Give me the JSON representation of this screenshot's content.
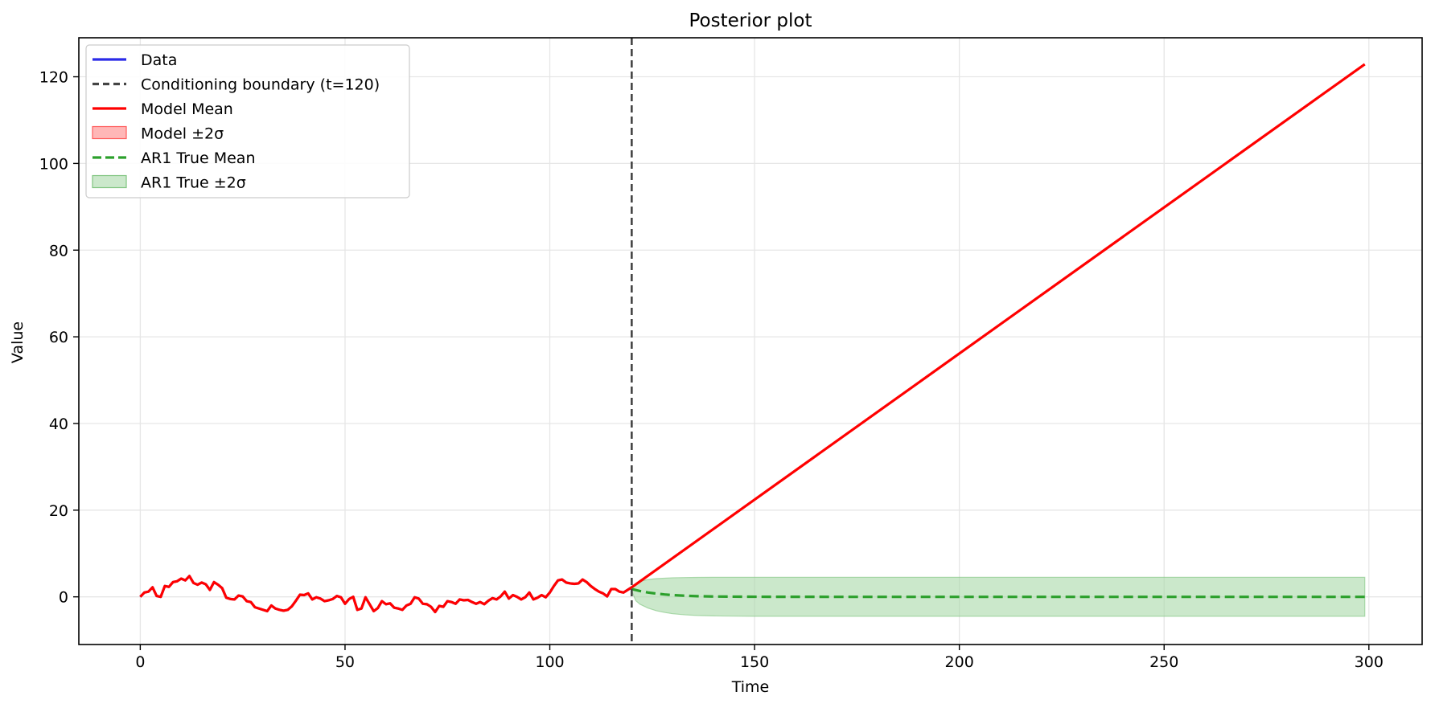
{
  "chart_data": {
    "type": "line",
    "title": "Posterior plot",
    "xlabel": "Time",
    "ylabel": "Value",
    "xlim": [
      -15,
      313
    ],
    "ylim": [
      -11,
      129
    ],
    "xticks": [
      0,
      50,
      100,
      150,
      200,
      250,
      300
    ],
    "yticks": [
      0,
      20,
      40,
      60,
      80,
      100,
      120
    ],
    "grid": true,
    "legend_position": "top-left",
    "colors": {
      "data": "#2b2be8",
      "boundary": "#444444",
      "model_mean": "#ff0000",
      "model_band": "#ff9999",
      "ar1_mean": "#2ca02c",
      "ar1_band": "#a8d8a8"
    },
    "legend": [
      {
        "label": "Data",
        "style": "line",
        "color": "#2b2be8"
      },
      {
        "label": "Conditioning boundary (t=120)",
        "style": "dashed",
        "color": "#444444"
      },
      {
        "label": "Model Mean",
        "style": "line",
        "color": "#ff0000"
      },
      {
        "label": "Model ±2σ",
        "style": "patch",
        "color": "#ff9999"
      },
      {
        "label": "AR1 True Mean",
        "style": "dashed",
        "color": "#2ca02c"
      },
      {
        "label": "AR1 True ±2σ",
        "style": "patch",
        "color": "#a8d8a8"
      }
    ],
    "boundary_x": 120,
    "series": [
      {
        "name": "Data",
        "x": [
          0,
          1,
          2,
          3,
          4,
          5,
          6,
          7,
          8,
          9,
          10,
          11,
          12,
          13,
          14,
          15,
          16,
          17,
          18,
          19,
          20,
          21,
          22,
          23,
          24,
          25,
          26,
          27,
          28,
          29,
          30,
          31,
          32,
          33,
          34,
          35,
          36,
          37,
          38,
          39,
          40,
          41,
          42,
          43,
          44,
          45,
          46,
          47,
          48,
          49,
          50,
          51,
          52,
          53,
          54,
          55,
          56,
          57,
          58,
          59,
          60,
          61,
          62,
          63,
          64,
          65,
          66,
          67,
          68,
          69,
          70,
          71,
          72,
          73,
          74,
          75,
          76,
          77,
          78,
          79,
          80,
          81,
          82,
          83,
          84,
          85,
          86,
          87,
          88,
          89,
          90,
          91,
          92,
          93,
          94,
          95,
          96,
          97,
          98,
          99,
          100,
          101,
          102,
          103,
          104,
          105,
          106,
          107,
          108,
          109,
          110,
          111,
          112,
          113,
          114,
          115,
          116,
          117,
          118,
          119,
          120
        ],
        "y": [
          0,
          1,
          1.2,
          2.2,
          0.2,
          0,
          2.5,
          2.3,
          3.4,
          3.6,
          4.2,
          3.8,
          4.8,
          3.2,
          2.8,
          3.3,
          2.9,
          1.6,
          3.4,
          2.8,
          2,
          -0.2,
          -0.5,
          -0.6,
          0.3,
          0.1,
          -1,
          -1.2,
          -2.4,
          -2.7,
          -3,
          -3.3,
          -2,
          -2.7,
          -3,
          -3.2,
          -3,
          -2.2,
          -0.9,
          0.5,
          0.4,
          0.8,
          -0.6,
          -0.1,
          -0.4,
          -1,
          -0.8,
          -0.5,
          0.2,
          -0.1,
          -1.6,
          -0.5,
          0,
          -3,
          -2.7,
          -0.1,
          -1.7,
          -3.3,
          -2.6,
          -1,
          -1.7,
          -1.5,
          -2.5,
          -2.7,
          -3,
          -2,
          -1.6,
          -0.1,
          -0.4,
          -1.6,
          -1.7,
          -2.3,
          -3.5,
          -2.1,
          -2.3,
          -1,
          -1.2,
          -1.6,
          -0.6,
          -0.8,
          -0.7,
          -1.2,
          -1.6,
          -1.2,
          -1.7,
          -0.9,
          -0.3,
          -0.6,
          0.1,
          1.2,
          -0.4,
          0.4,
          0,
          -0.6,
          -0.1,
          1,
          -0.6,
          -0.2,
          0.4,
          -0.1,
          1,
          2.5,
          3.8,
          4,
          3.3,
          3.1,
          3,
          3.1,
          4,
          3.4,
          2.5,
          1.8,
          1.2,
          0.8,
          0.1,
          1.8,
          1.8,
          1.2,
          1,
          1.6,
          2.2
        ]
      },
      {
        "name": "Model Mean",
        "x": [
          0,
          1,
          2,
          3,
          4,
          5,
          6,
          7,
          8,
          9,
          10,
          11,
          12,
          13,
          14,
          15,
          16,
          17,
          18,
          19,
          20,
          21,
          22,
          23,
          24,
          25,
          26,
          27,
          28,
          29,
          30,
          31,
          32,
          33,
          34,
          35,
          36,
          37,
          38,
          39,
          40,
          41,
          42,
          43,
          44,
          45,
          46,
          47,
          48,
          49,
          50,
          51,
          52,
          53,
          54,
          55,
          56,
          57,
          58,
          59,
          60,
          61,
          62,
          63,
          64,
          65,
          66,
          67,
          68,
          69,
          70,
          71,
          72,
          73,
          74,
          75,
          76,
          77,
          78,
          79,
          80,
          81,
          82,
          83,
          84,
          85,
          86,
          87,
          88,
          89,
          90,
          91,
          92,
          93,
          94,
          95,
          96,
          97,
          98,
          99,
          100,
          101,
          102,
          103,
          104,
          105,
          106,
          107,
          108,
          109,
          110,
          111,
          112,
          113,
          114,
          115,
          116,
          117,
          118,
          119,
          120,
          299
        ],
        "y": [
          0,
          1,
          1.2,
          2.2,
          0.2,
          0,
          2.5,
          2.3,
          3.4,
          3.6,
          4.2,
          3.8,
          4.8,
          3.2,
          2.8,
          3.3,
          2.9,
          1.6,
          3.4,
          2.8,
          2,
          -0.2,
          -0.5,
          -0.6,
          0.3,
          0.1,
          -1,
          -1.2,
          -2.4,
          -2.7,
          -3,
          -3.3,
          -2,
          -2.7,
          -3,
          -3.2,
          -3,
          -2.2,
          -0.9,
          0.5,
          0.4,
          0.8,
          -0.6,
          -0.1,
          -0.4,
          -1,
          -0.8,
          -0.5,
          0.2,
          -0.1,
          -1.6,
          -0.5,
          0,
          -3,
          -2.7,
          -0.1,
          -1.7,
          -3.3,
          -2.6,
          -1,
          -1.7,
          -1.5,
          -2.5,
          -2.7,
          -3,
          -2,
          -1.6,
          -0.1,
          -0.4,
          -1.6,
          -1.7,
          -2.3,
          -3.5,
          -2.1,
          -2.3,
          -1,
          -1.2,
          -1.6,
          -0.6,
          -0.8,
          -0.7,
          -1.2,
          -1.6,
          -1.2,
          -1.7,
          -0.9,
          -0.3,
          -0.6,
          0.1,
          1.2,
          -0.4,
          0.4,
          0,
          -0.6,
          -0.1,
          1,
          -0.6,
          -0.2,
          0.4,
          -0.1,
          1,
          2.5,
          3.8,
          4,
          3.3,
          3.1,
          3,
          3.1,
          4,
          3.4,
          2.5,
          1.8,
          1.2,
          0.8,
          0.1,
          1.8,
          1.8,
          1.2,
          1,
          1.6,
          2.2,
          122.9
        ]
      },
      {
        "name": "AR1 True Mean",
        "x": [
          120,
          122,
          124,
          126,
          128,
          130,
          133,
          136,
          140,
          145,
          150,
          160,
          170,
          200,
          250,
          299
        ],
        "y": [
          1.8,
          1.35,
          1.0,
          0.75,
          0.55,
          0.4,
          0.25,
          0.15,
          0.08,
          0.04,
          0.02,
          0.01,
          0,
          0,
          0,
          0
        ]
      }
    ],
    "ar1_band": {
      "x": [
        120,
        121,
        122,
        124,
        126,
        128,
        130,
        133,
        136,
        140,
        145,
        150,
        160,
        170,
        200,
        250,
        299
      ],
      "upper": [
        2.2,
        3.1,
        3.6,
        4.0,
        4.2,
        4.3,
        4.4,
        4.45,
        4.48,
        4.5,
        4.5,
        4.5,
        4.5,
        4.5,
        4.5,
        4.5,
        4.5
      ],
      "lower": [
        1.3,
        -0.9,
        -1.7,
        -2.6,
        -3.2,
        -3.6,
        -3.9,
        -4.15,
        -4.3,
        -4.4,
        -4.45,
        -4.5,
        -4.5,
        -4.5,
        -4.5,
        -4.5,
        -4.5
      ]
    }
  }
}
